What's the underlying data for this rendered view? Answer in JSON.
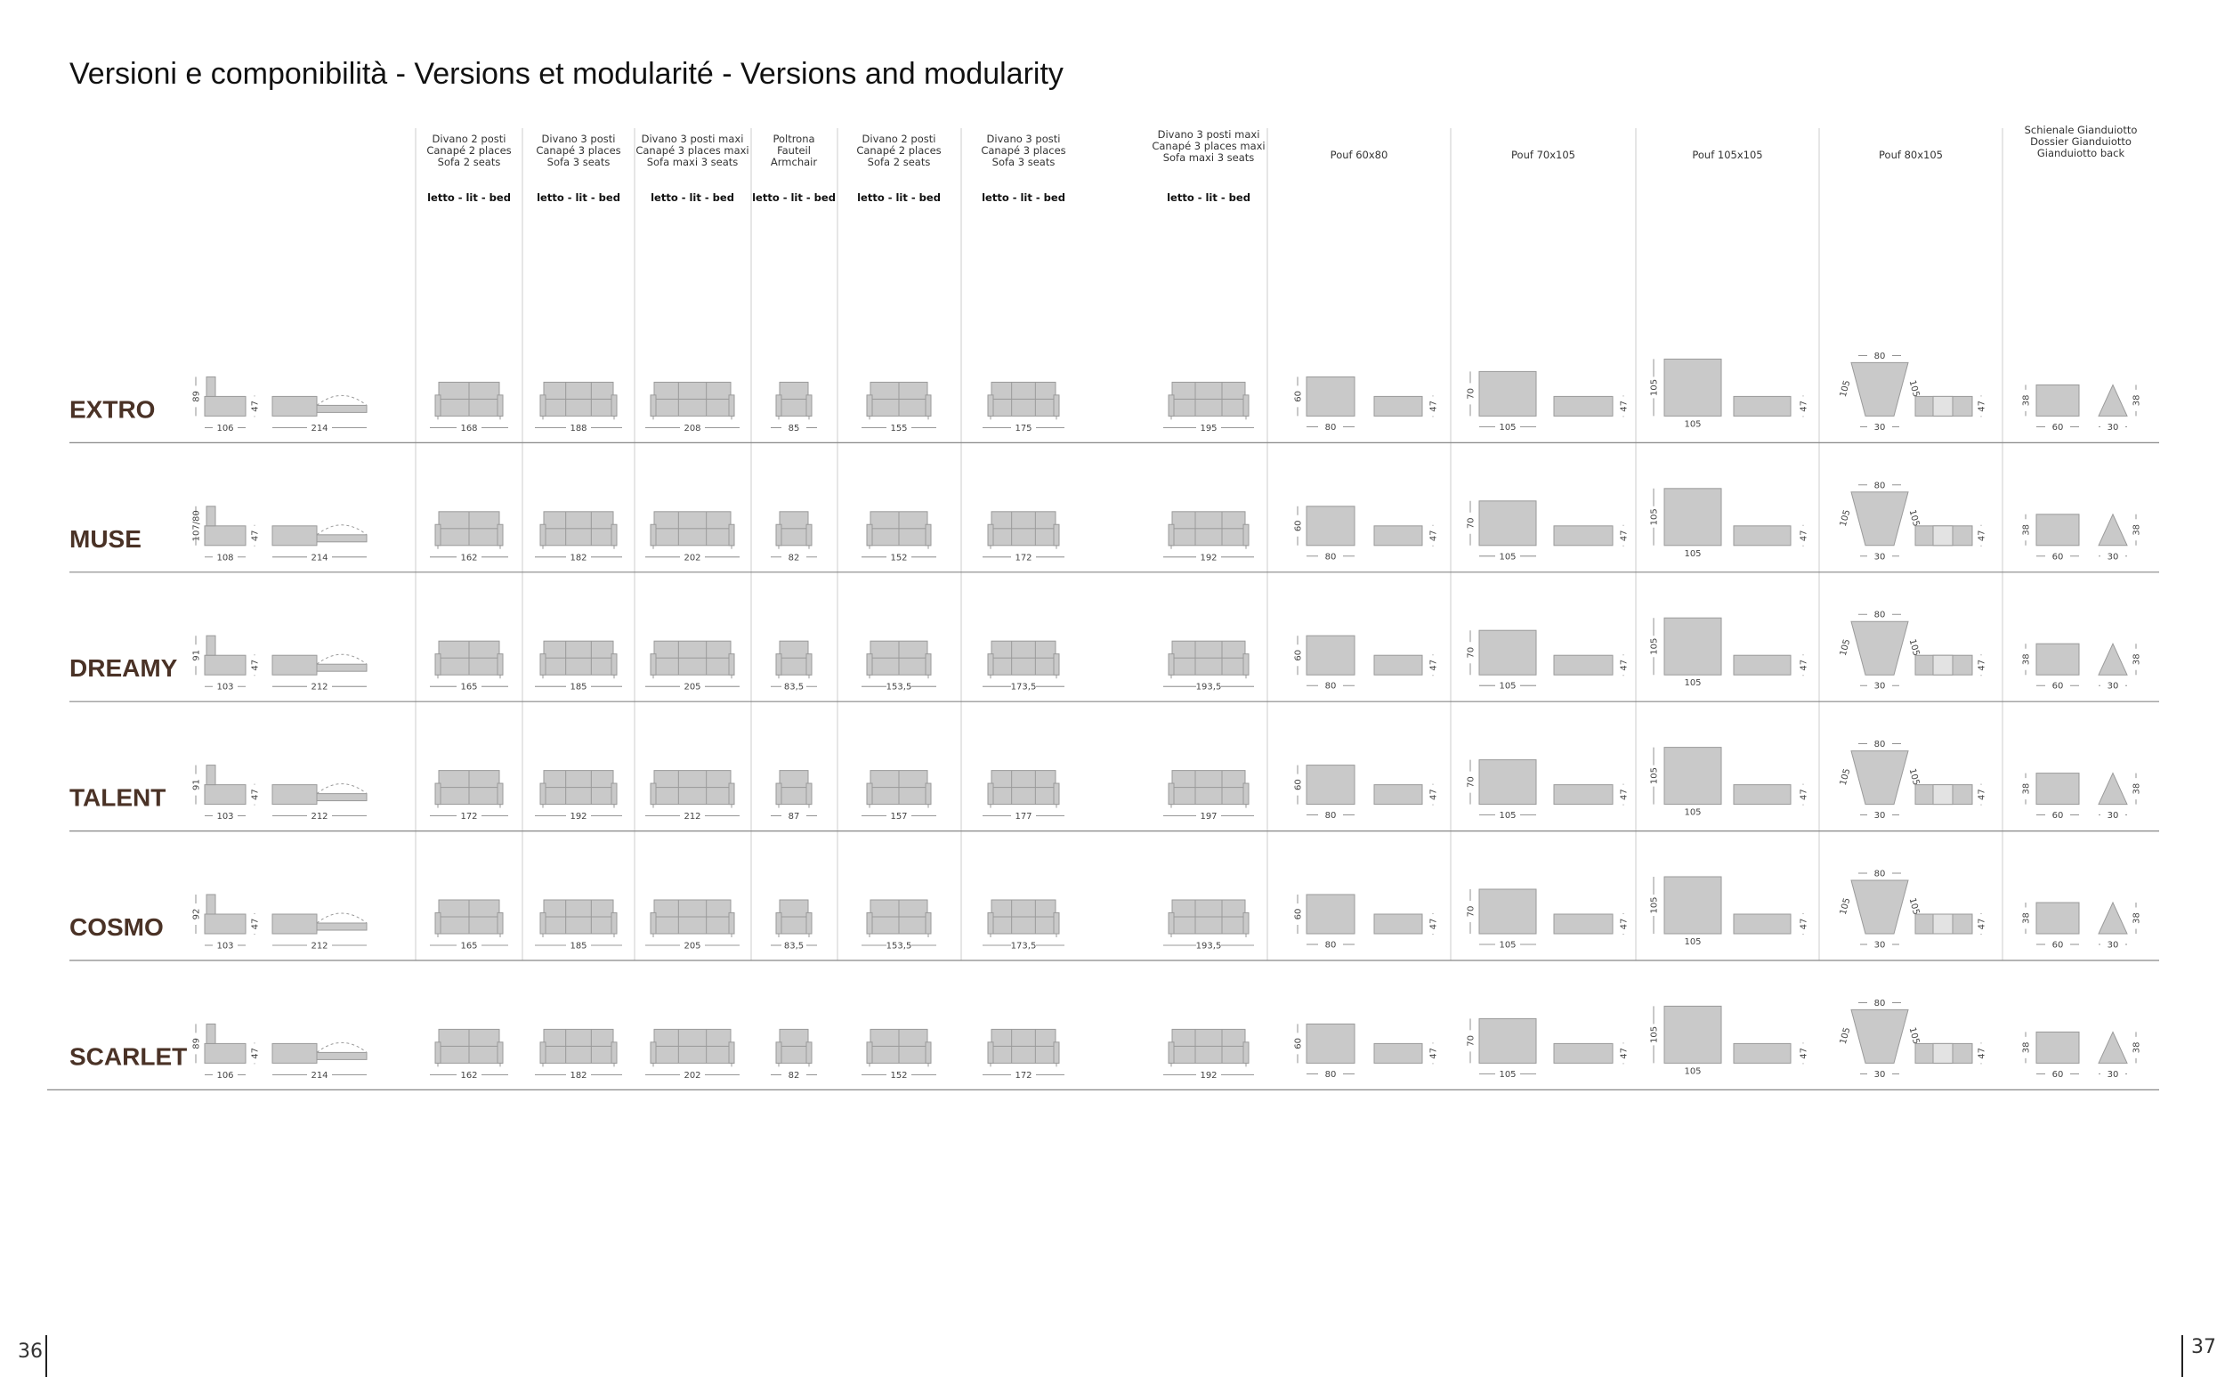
{
  "title": "Versioni e componibilità - Versions et modularité - Versions and modularity",
  "columns": [
    {
      "lines": [
        "Divano 2 posti",
        "Canapé 2 places",
        "Sofa 2 seats"
      ],
      "bed": "letto - lit - bed"
    },
    {
      "lines": [
        "Divano 3 posti",
        "Canapé 3 places",
        "Sofa 3 seats"
      ],
      "bed": "letto - lit - bed"
    },
    {
      "lines": [
        "Divano 3 posti maxi",
        "Canapé 3 places maxi",
        "Sofa maxi 3 seats"
      ],
      "bed": "letto - lit - bed"
    },
    {
      "lines": [
        "Poltrona",
        "Fauteil",
        "Armchair"
      ],
      "bed": "letto - lit - bed"
    },
    {
      "lines": [
        "Divano 2 posti",
        "Canapé 2 places",
        "Sofa 2 seats"
      ],
      "bed": "letto - lit - bed"
    },
    {
      "lines": [
        "Divano 3 posti",
        "Canapé 3 places",
        "Sofa 3 seats"
      ],
      "bed": "letto - lit - bed"
    },
    {
      "lines": [
        "Divano 3 posti maxi",
        "Canapé 3 places maxi",
        "Sofa maxi 3 seats"
      ],
      "bed": "letto - lit - bed"
    },
    {
      "lines": [
        "Pouf 60x80"
      ],
      "dims": [
        60,
        80,
        47
      ]
    },
    {
      "lines": [
        "Pouf 70x105"
      ],
      "dims": [
        70,
        105,
        47
      ]
    },
    {
      "lines": [
        "Pouf 105x105"
      ],
      "dims": [
        105,
        105,
        47
      ]
    },
    {
      "lines": [
        "Pouf 80x105"
      ],
      "dims": [
        80,
        105,
        105,
        30,
        47
      ]
    },
    {
      "lines": [
        "Schienale Gianduiotto",
        "Dossier Gianduiotto",
        "Gianduiotto back"
      ],
      "dims": [
        38,
        60,
        30,
        38
      ]
    }
  ],
  "rows": [
    {
      "name": "EXTRO",
      "side": [
        89,
        47,
        106,
        214
      ],
      "widths": [
        168,
        188,
        208,
        85,
        155,
        175,
        195
      ]
    },
    {
      "name": "MUSE",
      "side": [
        "107/80",
        47,
        108,
        214
      ],
      "widths": [
        162,
        182,
        202,
        82,
        152,
        172,
        192
      ]
    },
    {
      "name": "DREAMY",
      "side": [
        91,
        47,
        103,
        212
      ],
      "widths": [
        165,
        185,
        205,
        "83,5",
        "153,5",
        "173,5",
        "193,5"
      ]
    },
    {
      "name": "TALENT",
      "side": [
        91,
        47,
        103,
        212
      ],
      "widths": [
        172,
        192,
        212,
        87,
        157,
        177,
        197
      ]
    },
    {
      "name": "COSMO",
      "side": [
        92,
        47,
        103,
        212
      ],
      "widths": [
        165,
        185,
        205,
        "83,5",
        "153,5",
        "173,5",
        "193,5"
      ]
    },
    {
      "name": "SCARLET",
      "side": [
        89,
        47,
        106,
        214
      ],
      "widths": [
        162,
        182,
        202,
        82,
        152,
        172,
        192
      ]
    }
  ],
  "pages": [
    "36",
    "37"
  ]
}
